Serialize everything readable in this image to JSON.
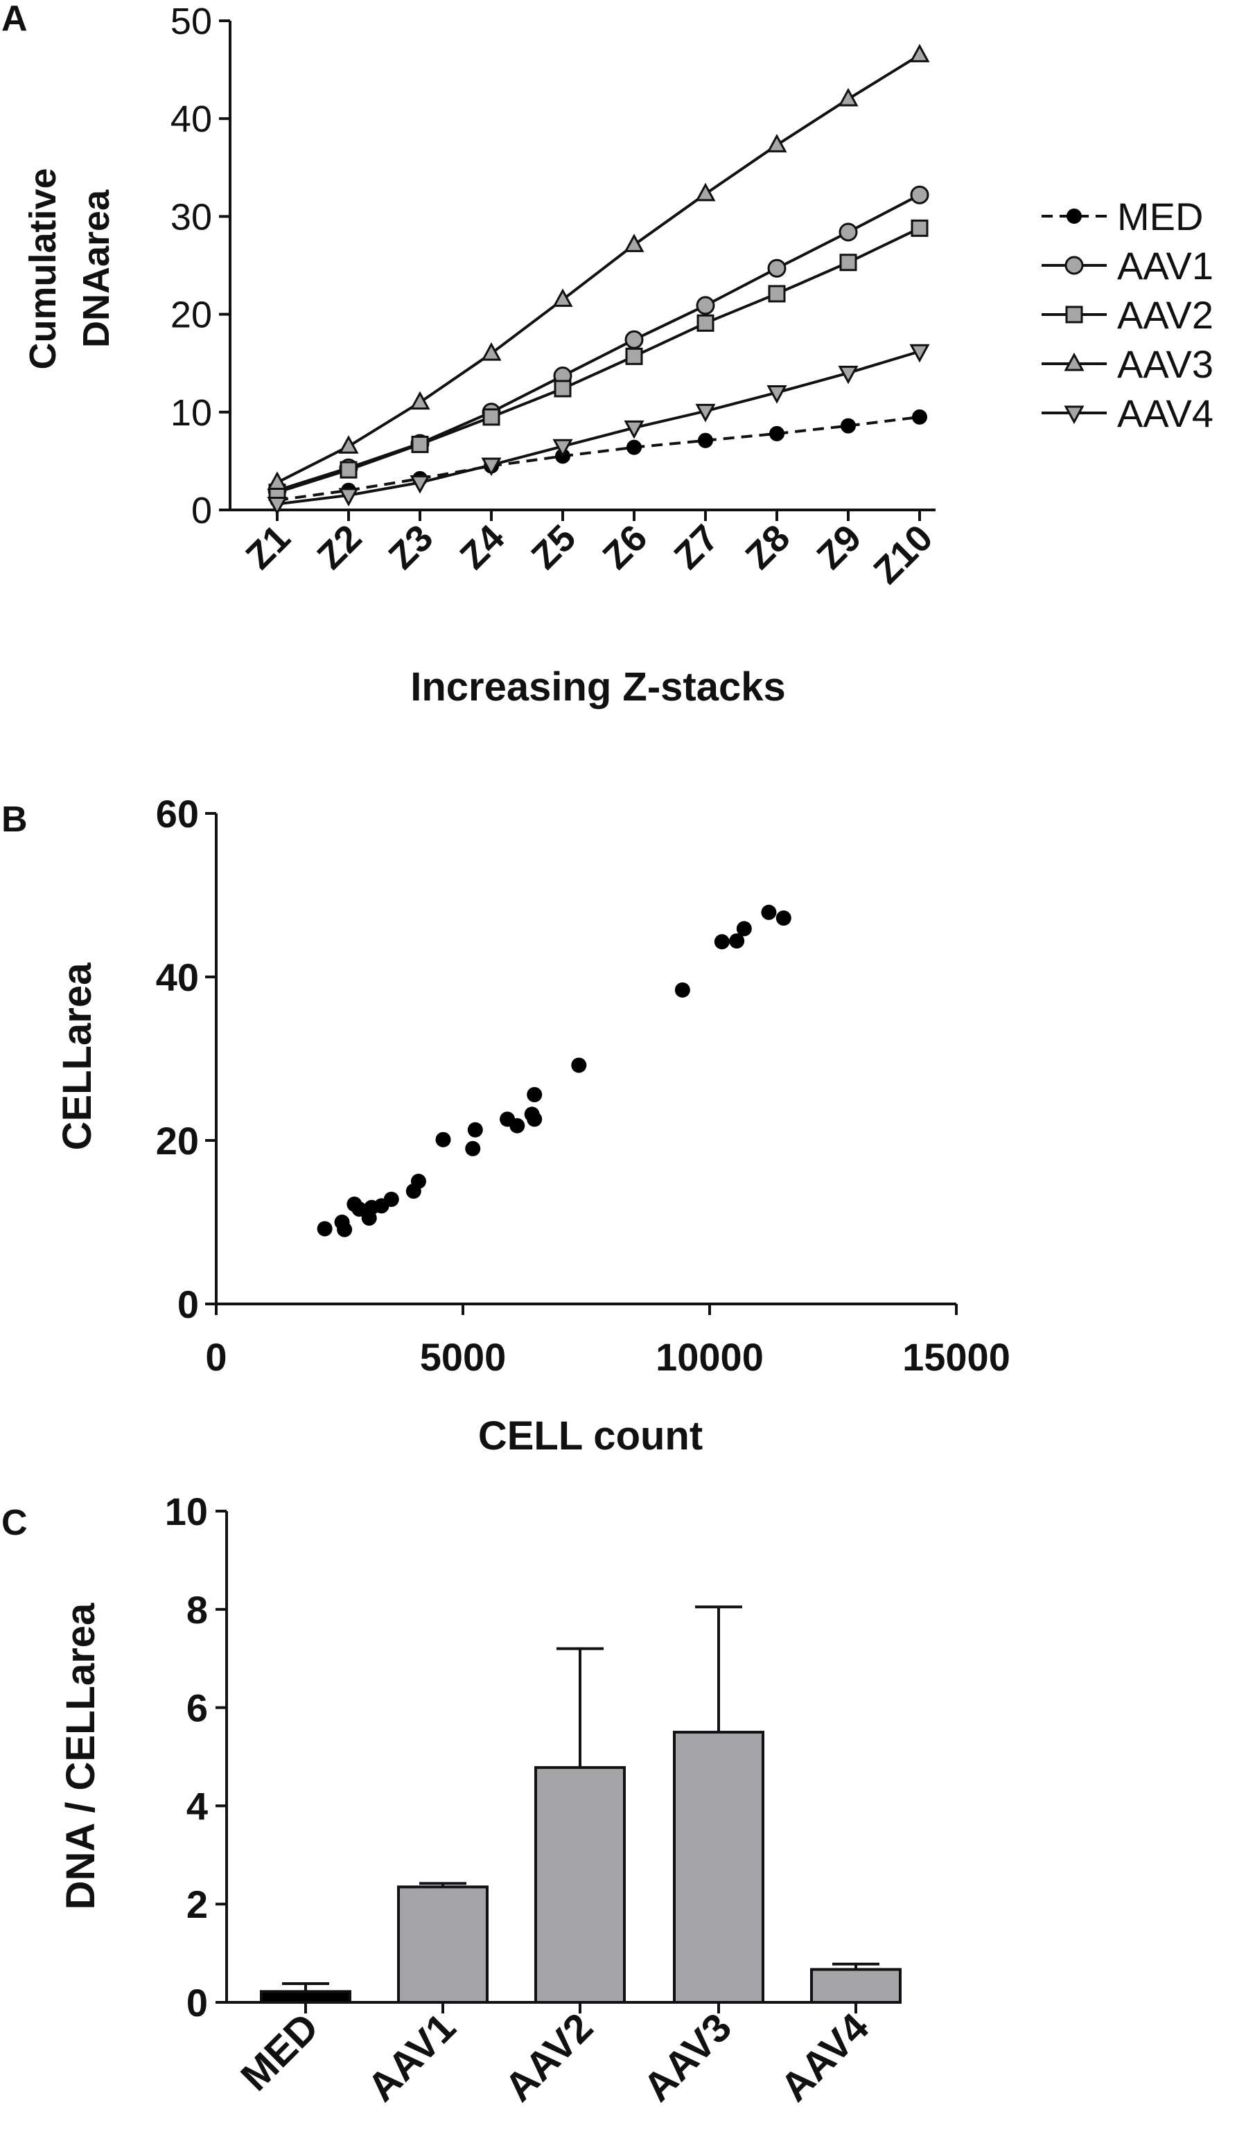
{
  "panels": {
    "a": "A",
    "b": "B",
    "c": "C"
  },
  "colors": {
    "axis": "#111111",
    "med": "#000000",
    "aav_marker": "#a6a6a6",
    "bar": "#a3a3a8"
  },
  "chart_data": [
    {
      "type": "line",
      "panel": "A",
      "xlabel": "Increasing Z-stacks",
      "ylabel": [
        "Cumulative",
        "DNAarea"
      ],
      "categories": [
        "Z1",
        "Z2",
        "Z3",
        "Z4",
        "Z5",
        "Z6",
        "Z7",
        "Z8",
        "Z9",
        "Z10"
      ],
      "ylim": [
        0,
        50
      ],
      "yticks": [
        "0",
        "10",
        "20",
        "30",
        "40",
        "50"
      ],
      "legend_position": "right",
      "series": [
        {
          "name": "MED",
          "marker": "filled-circle",
          "line": "dashed",
          "values": [
            1.0,
            2.0,
            3.2,
            4.5,
            5.5,
            6.4,
            7.1,
            7.8,
            8.6,
            9.5
          ]
        },
        {
          "name": "AAV1",
          "marker": "open-circle",
          "line": "solid",
          "values": [
            2.0,
            4.3,
            6.8,
            10.0,
            13.7,
            17.4,
            20.9,
            24.7,
            28.4,
            32.2
          ]
        },
        {
          "name": "AAV2",
          "marker": "square",
          "line": "solid",
          "values": [
            1.8,
            4.1,
            6.7,
            9.5,
            12.4,
            15.7,
            19.1,
            22.1,
            25.3,
            28.8
          ]
        },
        {
          "name": "AAV3",
          "marker": "triangle-up",
          "line": "solid",
          "values": [
            2.8,
            6.5,
            11.0,
            16.0,
            21.5,
            27.1,
            32.3,
            37.3,
            42.0,
            46.5
          ]
        },
        {
          "name": "AAV4",
          "marker": "triangle-down",
          "line": "solid",
          "values": [
            0.6,
            1.5,
            2.8,
            4.6,
            6.5,
            8.4,
            10.1,
            12.0,
            14.0,
            16.2
          ]
        }
      ]
    },
    {
      "type": "scatter",
      "panel": "B",
      "xlabel": "CELL count",
      "ylabel": "CELLarea",
      "xlim": [
        0,
        15000
      ],
      "ylim": [
        0,
        60
      ],
      "xticks": [
        "0",
        "5000",
        "10000",
        "15000"
      ],
      "yticks": [
        "0",
        "20",
        "40",
        "60"
      ],
      "points": [
        [
          2200,
          9.2
        ],
        [
          2550,
          10.0
        ],
        [
          2600,
          9.1
        ],
        [
          2800,
          12.2
        ],
        [
          2900,
          11.6
        ],
        [
          3100,
          10.5
        ],
        [
          3150,
          11.8
        ],
        [
          3350,
          12.0
        ],
        [
          3550,
          12.8
        ],
        [
          4000,
          13.8
        ],
        [
          4100,
          15.0
        ],
        [
          4600,
          20.1
        ],
        [
          5200,
          19.0
        ],
        [
          5250,
          21.3
        ],
        [
          5900,
          22.6
        ],
        [
          6100,
          21.8
        ],
        [
          6450,
          22.6
        ],
        [
          6450,
          25.6
        ],
        [
          6400,
          23.2
        ],
        [
          7350,
          29.2
        ],
        [
          9450,
          38.4
        ],
        [
          10250,
          44.3
        ],
        [
          10550,
          44.4
        ],
        [
          10700,
          45.9
        ],
        [
          11200,
          47.9
        ],
        [
          11500,
          47.2
        ]
      ]
    },
    {
      "type": "bar",
      "panel": "C",
      "ylabel": "DNA / CELLarea",
      "categories": [
        "MED",
        "AAV1",
        "AAV2",
        "AAV3",
        "AAV4"
      ],
      "values": [
        0.22,
        2.35,
        4.78,
        5.5,
        0.67
      ],
      "error_upper": [
        0.38,
        2.42,
        7.2,
        8.05,
        0.78
      ],
      "ylim": [
        0,
        10
      ],
      "yticks": [
        "0",
        "2",
        "4",
        "6",
        "8",
        "10"
      ]
    }
  ]
}
